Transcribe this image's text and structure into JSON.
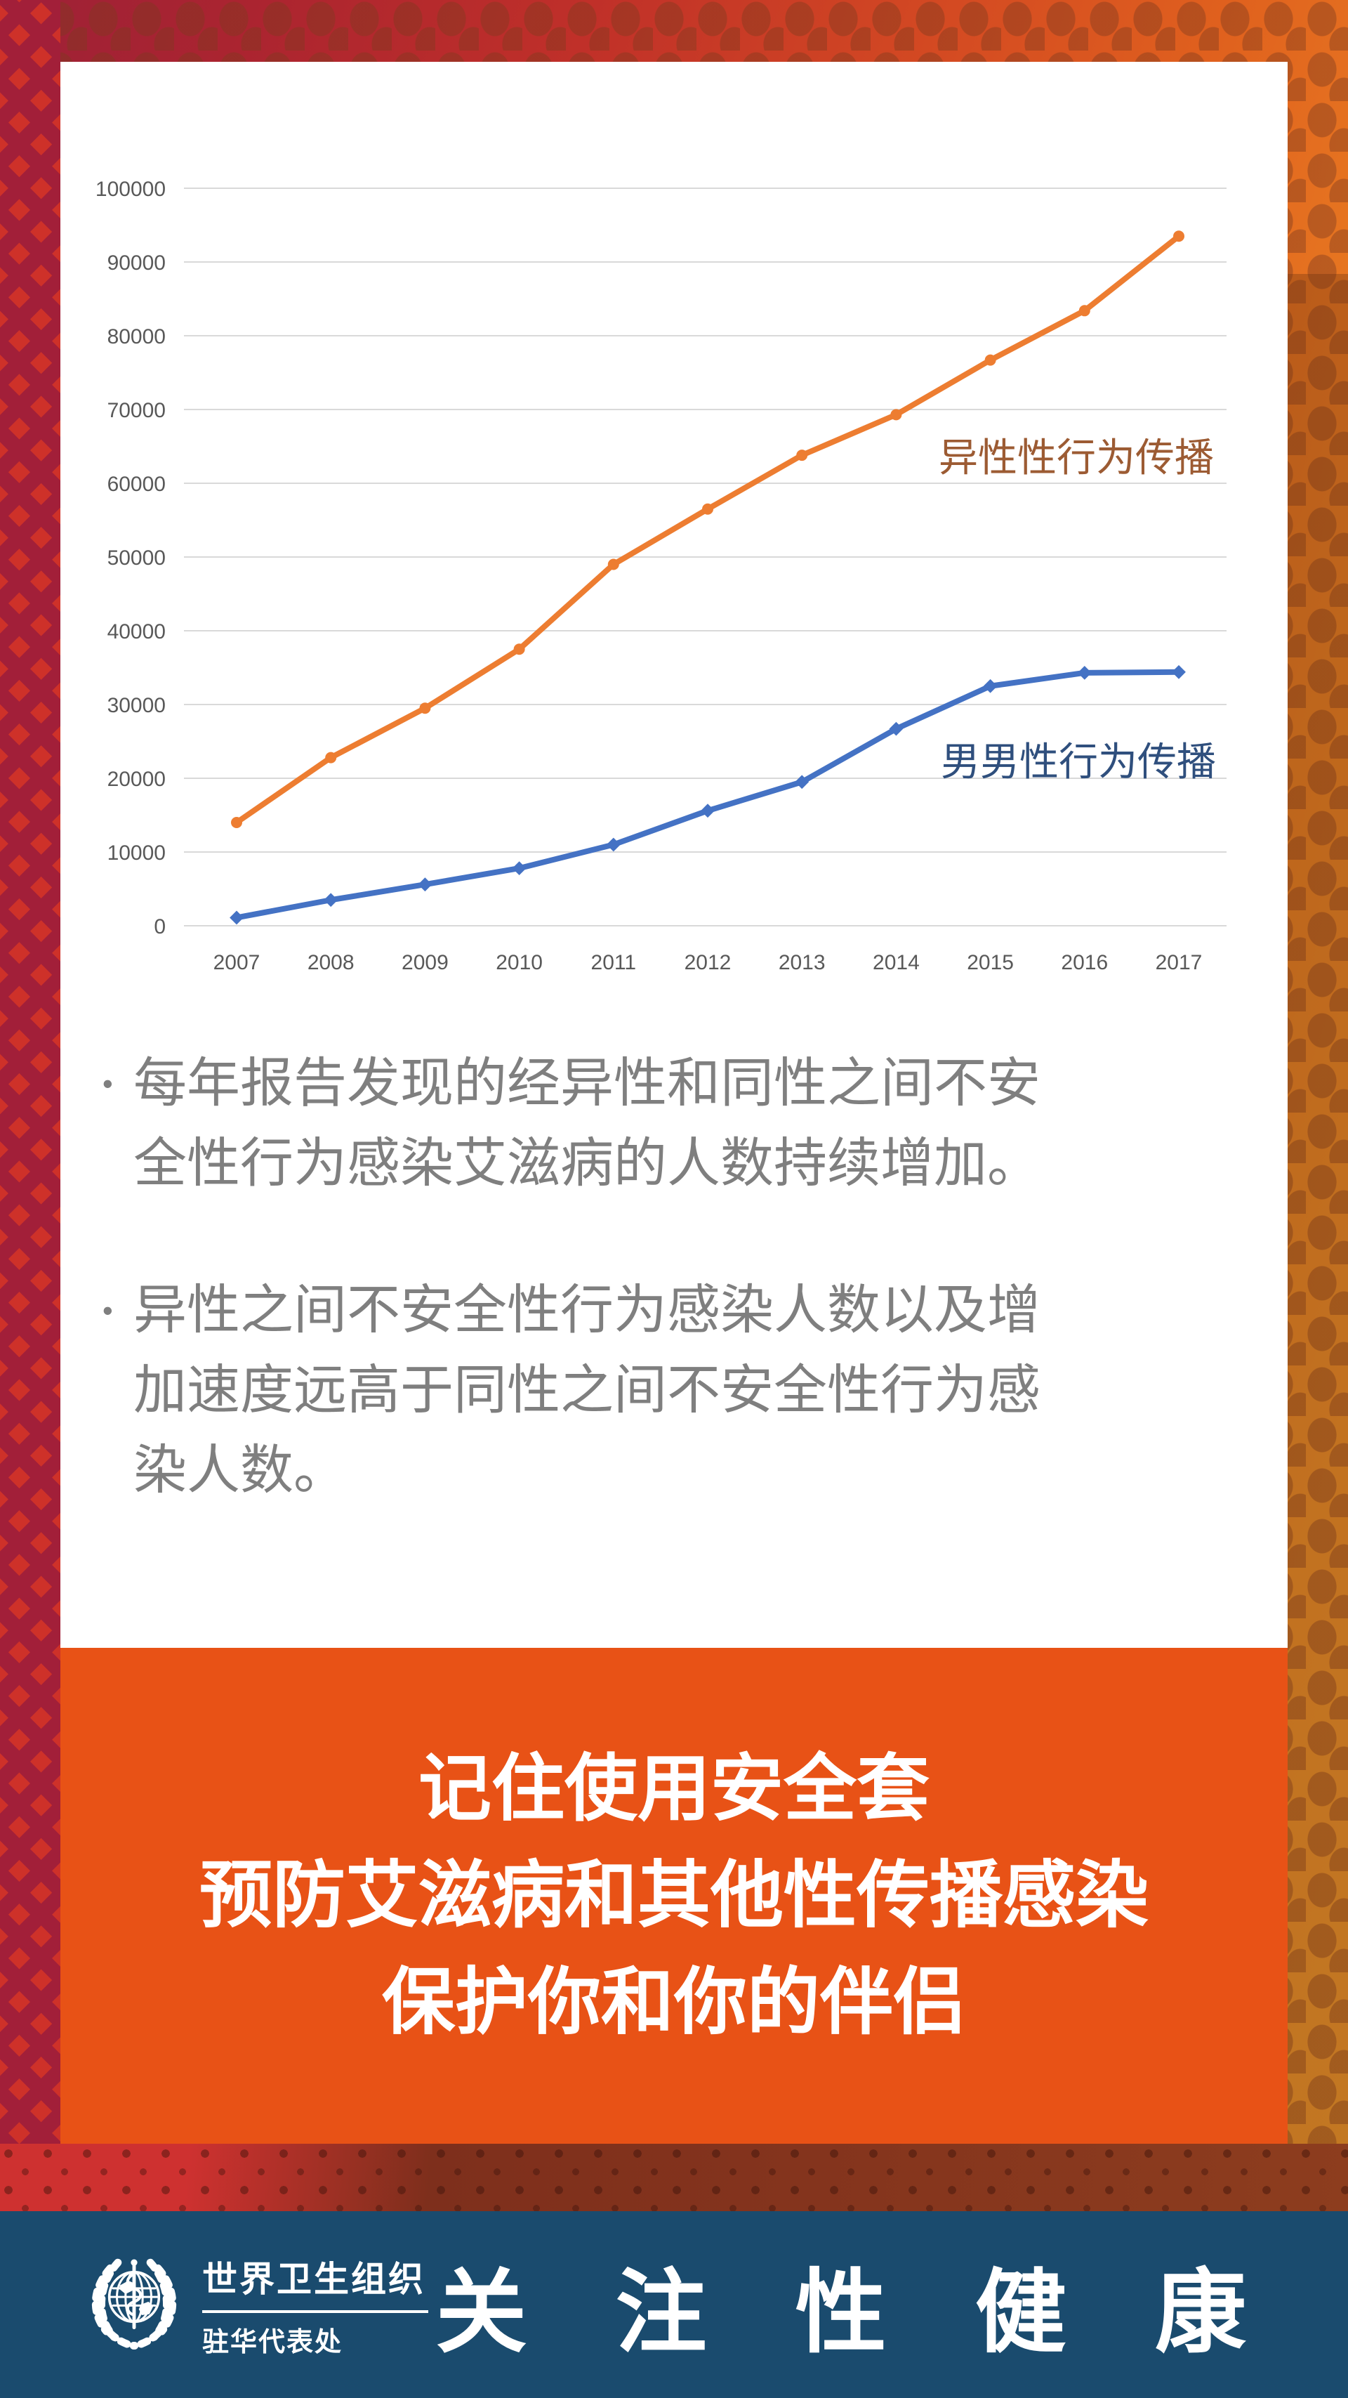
{
  "colors": {
    "bg_maroon": "#9D2137",
    "bg_red": "#C03029",
    "bg_orange": "#E97F22",
    "bg_amber": "#F09E2E",
    "left_diamond_bg": "#A21F39",
    "left_diamond_dot": "#CE3129",
    "card_bg": "#FFFFFF",
    "gridline": "#D9D9D9",
    "tick_text": "#595959",
    "bullet_text": "#7F7F7F",
    "banner_bg": "#E85216",
    "banner_text": "#FFFFFF",
    "footer_bg": "#1A4B6E",
    "footer_text": "#FFFFFF"
  },
  "chart_data": {
    "type": "line",
    "title": "",
    "xlabel": "",
    "ylabel": "",
    "categories": [
      "2007",
      "2008",
      "2009",
      "2010",
      "2011",
      "2012",
      "2013",
      "2014",
      "2015",
      "2016",
      "2017"
    ],
    "series": [
      {
        "name": "异性性行为传播",
        "color": "#ED7D31",
        "label_color": "#9C5B33",
        "marker": "circle",
        "values": [
          14000,
          22800,
          29500,
          37500,
          49000,
          56500,
          63800,
          69300,
          76700,
          83400,
          93500
        ]
      },
      {
        "name": "男男性行为传播",
        "color": "#4472C4",
        "label_color": "#2F4F7D",
        "marker": "diamond",
        "values": [
          1100,
          3500,
          5600,
          7800,
          11000,
          15600,
          19500,
          26700,
          32500,
          34300,
          34400
        ]
      }
    ],
    "ylim": [
      0,
      100000
    ],
    "ytick_step": 10000,
    "grid": true,
    "legend_position": "inline-right-of-lines"
  },
  "bullets": [
    {
      "marker": "•",
      "text": "每年报告发现的经异性和同性之间不安全性行为感染艾滋病的人数持续增加。"
    },
    {
      "marker": "•",
      "text": "异性之间不安全性行为感染人数以及增加速度远高于同性之间不安全性行为感染人数。"
    }
  ],
  "banner": {
    "lines": [
      "记住使用安全套",
      "预防艾滋病和其他性传播感染",
      "保护你和你的伴侣"
    ]
  },
  "footer": {
    "org_name": "世界卫生组织",
    "org_sub": "驻华代表处",
    "slogan": "关 注 性 健 康",
    "logo": "who-emblem"
  }
}
